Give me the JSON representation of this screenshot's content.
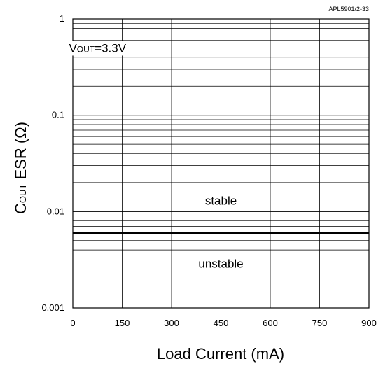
{
  "chart_data": {
    "type": "line",
    "reference_code": "APL5901/2-33",
    "xlabel": "Load Current (mA)",
    "ylabel": {
      "prefix": "C",
      "subscript": "OUT",
      "rest": " ESR (Ω)"
    },
    "xlim": [
      0,
      900
    ],
    "ylim": [
      0.001,
      1
    ],
    "yscale": "log",
    "grid": true,
    "x_ticks": [
      "0",
      "150",
      "300",
      "450",
      "600",
      "750",
      "900"
    ],
    "x_tick_values": [
      0,
      150,
      300,
      450,
      600,
      750,
      900
    ],
    "y_ticks": [
      "1",
      "0.1",
      "0.01",
      "0.001"
    ],
    "y_tick_values": [
      1,
      0.1,
      0.01,
      0.001
    ],
    "series": [
      {
        "x": [
          0,
          900
        ],
        "y": [
          0.006,
          0.006
        ],
        "color": "#000000"
      }
    ],
    "annotations": {
      "condition": {
        "main": "V",
        "subscript": "OUT",
        "rest": "=3.3V",
        "at": [
          75,
          0.5
        ]
      },
      "stable": {
        "text": "stable",
        "at": [
          450,
          0.013
        ]
      },
      "unstable": {
        "text": "unstable",
        "at": [
          450,
          0.0029
        ]
      }
    }
  }
}
